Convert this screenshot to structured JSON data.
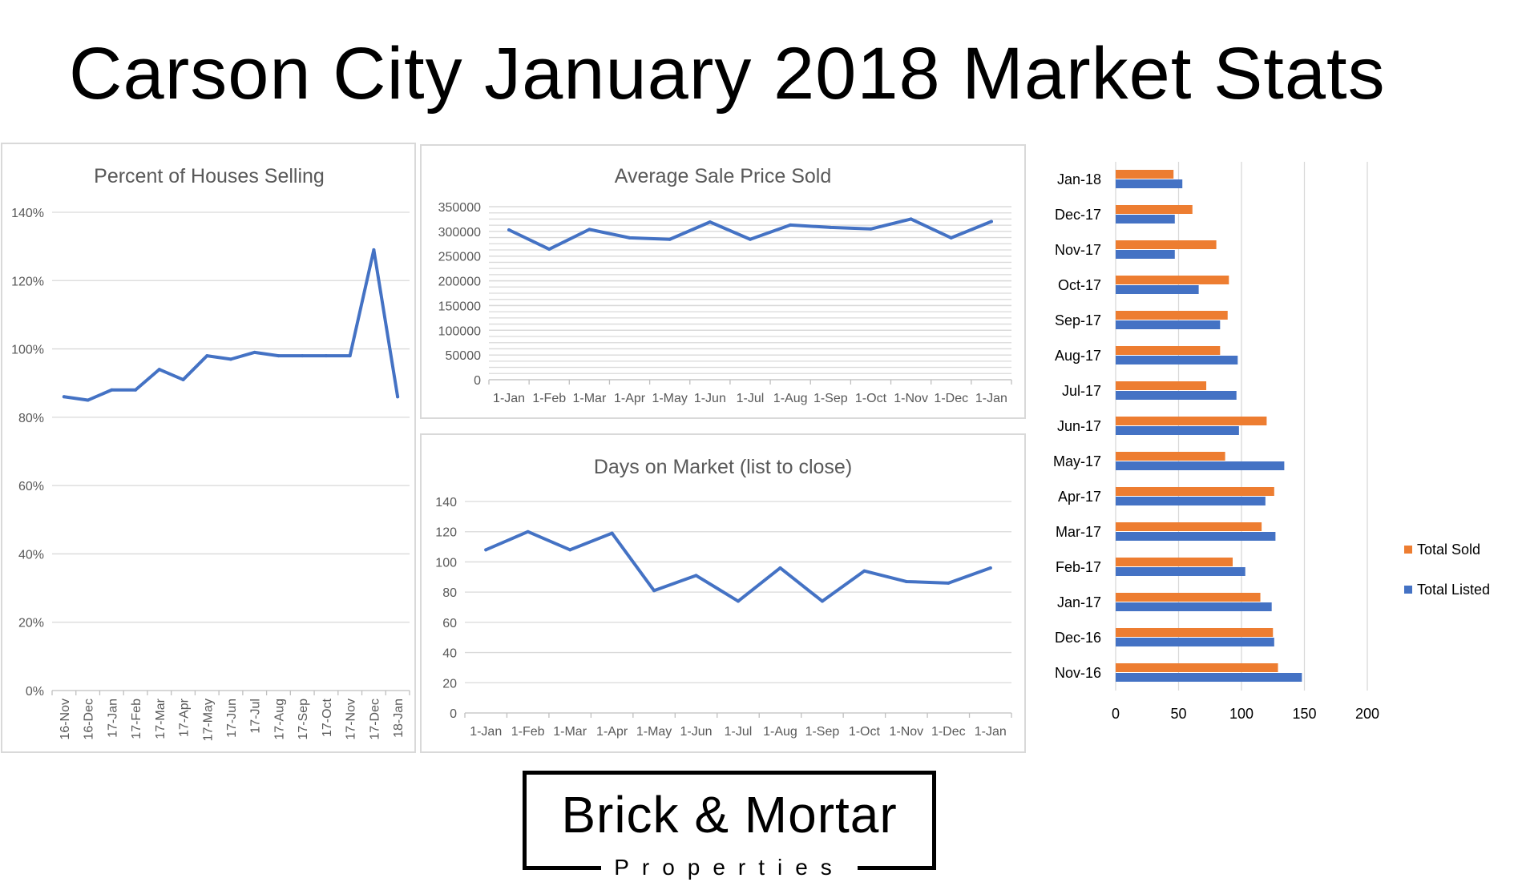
{
  "page": {
    "title": "Carson City January 2018 Market Stats"
  },
  "logo": {
    "main": "Brick & Mortar",
    "sub": "Properties"
  },
  "colors": {
    "blue": "#4472c4",
    "orange": "#ed7d31",
    "grid": "#d9d9d9",
    "text": "#595959"
  },
  "chart_data": [
    {
      "id": "percent",
      "type": "line",
      "title": "Percent of Houses Selling",
      "categories": [
        "16-Nov",
        "16-Dec",
        "17-Jan",
        "17-Feb",
        "17-Mar",
        "17-Apr",
        "17-May",
        "17-Jun",
        "17-Jul",
        "17-Aug",
        "17-Sep",
        "17-Oct",
        "17-Nov",
        "17-Dec",
        "18-Jan"
      ],
      "series": [
        {
          "values": [
            86,
            85,
            88,
            88,
            94,
            91,
            98,
            97,
            99,
            98,
            98,
            98,
            98,
            129,
            86
          ]
        }
      ],
      "ylim": [
        0,
        140
      ],
      "yticks": [
        "0%",
        "20%",
        "40%",
        "60%",
        "80%",
        "100%",
        "120%",
        "140%"
      ],
      "grid": true,
      "legend": "none"
    },
    {
      "id": "price",
      "type": "line",
      "title": "Average Sale Price Sold",
      "categories": [
        "1-Jan",
        "1-Feb",
        "1-Mar",
        "1-Apr",
        "1-May",
        "1-Jun",
        "1-Jul",
        "1-Aug",
        "1-Sep",
        "1-Oct",
        "1-Nov",
        "1-Dec",
        "1-Jan"
      ],
      "series": [
        {
          "values": [
            303000,
            264000,
            304000,
            287000,
            284000,
            319000,
            284000,
            313000,
            308000,
            305000,
            325000,
            287000,
            320000
          ]
        }
      ],
      "ylim": [
        0,
        350000
      ],
      "yticks": [
        "0",
        "50000",
        "100000",
        "150000",
        "200000",
        "250000",
        "300000",
        "350000"
      ],
      "grid": true,
      "legend": "none"
    },
    {
      "id": "days",
      "type": "line",
      "title": "Days on Market (list to close)",
      "categories": [
        "1-Jan",
        "1-Feb",
        "1-Mar",
        "1-Apr",
        "1-May",
        "1-Jun",
        "1-Jul",
        "1-Aug",
        "1-Sep",
        "1-Oct",
        "1-Nov",
        "1-Dec",
        "1-Jan"
      ],
      "series": [
        {
          "values": [
            108,
            120,
            108,
            119,
            81,
            91,
            74,
            96,
            74,
            94,
            87,
            86,
            96
          ]
        }
      ],
      "ylim": [
        0,
        140
      ],
      "yticks": [
        "0",
        "20",
        "40",
        "60",
        "80",
        "100",
        "120",
        "140"
      ],
      "grid": true,
      "legend": "none"
    },
    {
      "id": "listings",
      "type": "bar",
      "orientation": "horizontal",
      "title": "",
      "categories": [
        "Nov-16",
        "Dec-16",
        "Jan-17",
        "Feb-17",
        "Mar-17",
        "Apr-17",
        "May-17",
        "Jun-17",
        "Jul-17",
        "Aug-17",
        "Sep-17",
        "Oct-17",
        "Nov-17",
        "Dec-17",
        "Jan-18"
      ],
      "series": [
        {
          "name": "Total Sold",
          "color": "#ed7d31",
          "values": [
            129,
            125,
            115,
            93,
            116,
            126,
            87,
            120,
            72,
            83,
            89,
            90,
            80,
            61,
            46
          ]
        },
        {
          "name": "Total Listed",
          "color": "#4472c4",
          "values": [
            148,
            126,
            124,
            103,
            127,
            119,
            134,
            98,
            96,
            97,
            83,
            66,
            47,
            47,
            53
          ]
        }
      ],
      "xlim": [
        0,
        200
      ],
      "xticks": [
        "0",
        "50",
        "100",
        "150",
        "200"
      ],
      "grid": true,
      "legend": "right"
    }
  ]
}
